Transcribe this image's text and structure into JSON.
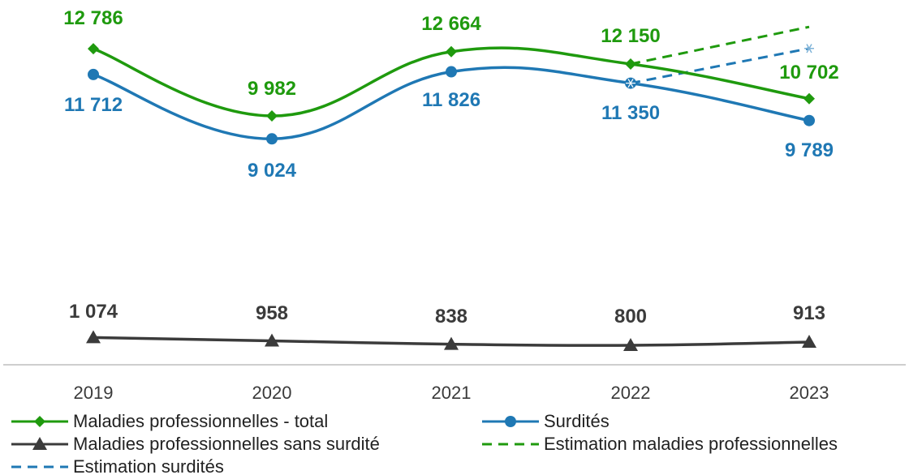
{
  "chart_data": {
    "type": "line",
    "categories": [
      "2019",
      "2020",
      "2021",
      "2022",
      "2023"
    ],
    "series": [
      {
        "key": "total",
        "name": "Maladies professionnelles - total",
        "color": "#1f9a0e",
        "marker": "diamond",
        "style": "solid",
        "values": [
          12786,
          9982,
          12664,
          12150,
          10702
        ],
        "labels": [
          "12 786",
          "9 982",
          "12 664",
          "12 150",
          "10 702"
        ]
      },
      {
        "key": "surdites",
        "name": "Surdités",
        "color": "#1f78b4",
        "marker": "circle",
        "style": "solid",
        "values": [
          11712,
          9024,
          11826,
          11350,
          9789
        ],
        "labels": [
          "11 712",
          "9 024",
          "11 826",
          "11 350",
          "9 789"
        ]
      },
      {
        "key": "sans_surdite",
        "name": "Maladies professionnelles sans surdité",
        "color": "#3b3b3b",
        "marker": "triangle",
        "style": "solid",
        "values": [
          1074,
          958,
          838,
          800,
          913
        ],
        "labels": [
          "1 074",
          "958",
          "838",
          "800",
          "913"
        ]
      },
      {
        "key": "est_total",
        "name": "Estimation maladies professionnelles",
        "color": "#1f9a0e",
        "style": "dashed",
        "x": [
          "2022",
          "2023"
        ],
        "values": [
          12150,
          13700
        ]
      },
      {
        "key": "est_surdites",
        "name": "Estimation surdités",
        "color": "#1f78b4",
        "style": "dashed",
        "x": [
          "2022",
          "2023"
        ],
        "values": [
          11350,
          12800
        ]
      }
    ]
  }
}
